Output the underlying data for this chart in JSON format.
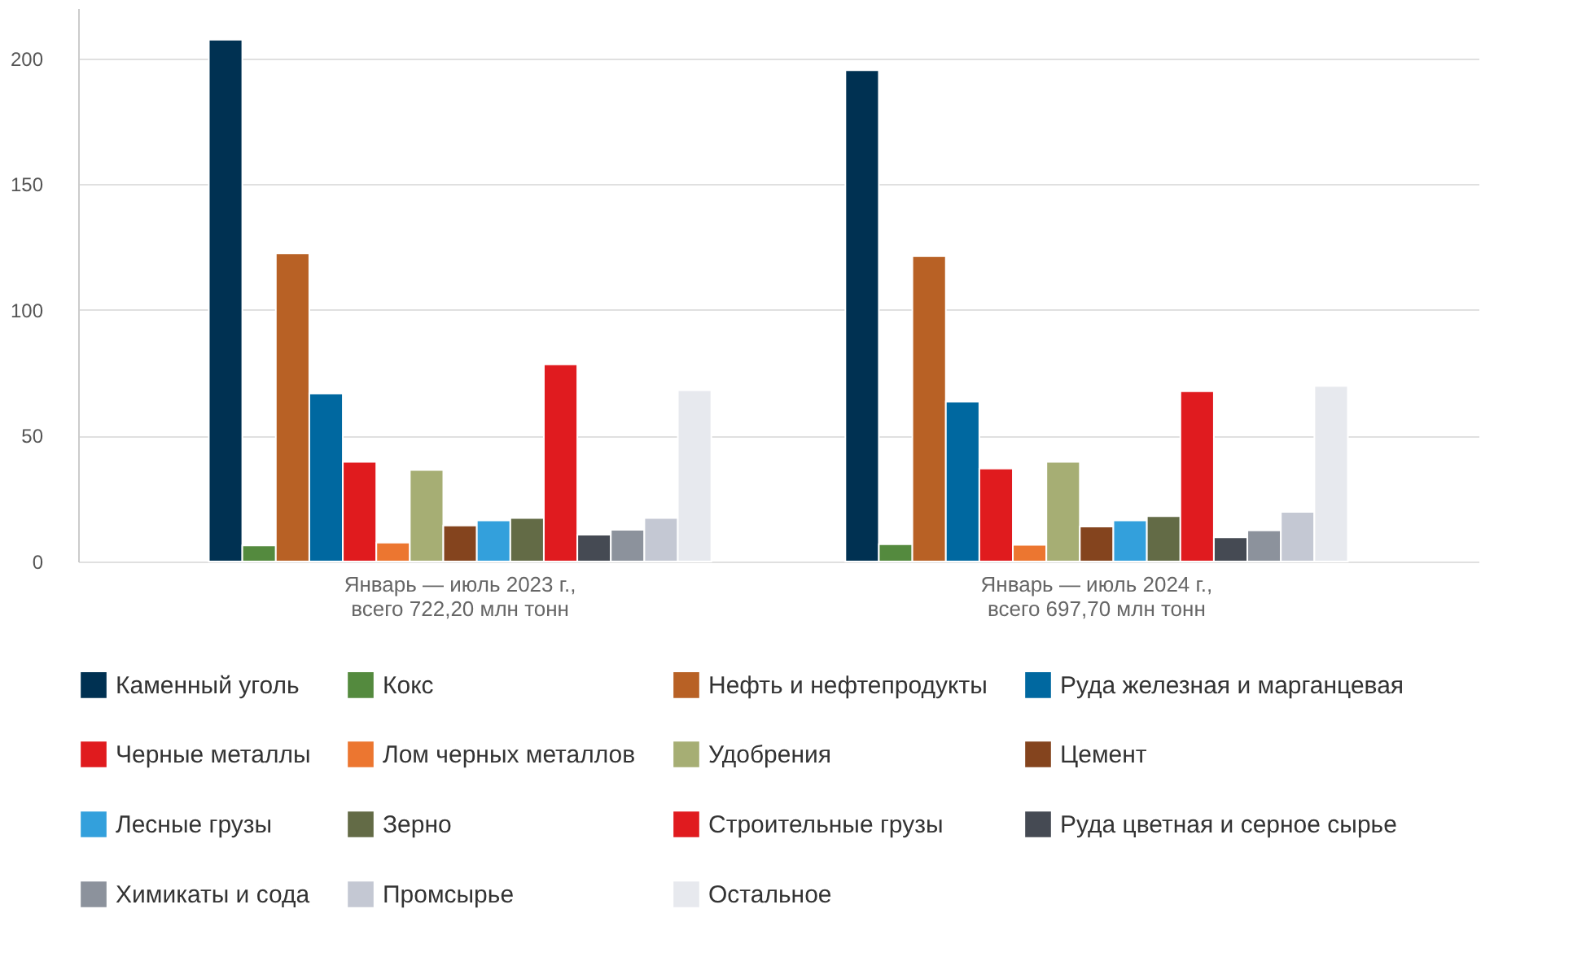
{
  "chart_data": {
    "type": "bar",
    "categories": [
      "Январь — июль 2023 г.,\nвсего 722,20 млн тонн",
      "Январь — июль 2024 г.,\nвсего 697,70 млн тонн"
    ],
    "series": [
      {
        "name": "Каменный уголь",
        "color": "#003152",
        "values": [
          207.5,
          195.3
        ]
      },
      {
        "name": "Кокс",
        "color": "#548a3e",
        "values": [
          6.4,
          6.9
        ]
      },
      {
        "name": "Нефть и нефтепродукты",
        "color": "#b86125",
        "values": [
          122.5,
          121.4
        ]
      },
      {
        "name": "Руда железная и марганцевая",
        "color": "#0068a0",
        "values": [
          66.8,
          63.6
        ]
      },
      {
        "name": "Черные металлы",
        "color": "#e01b1e",
        "values": [
          39.6,
          37.0
        ]
      },
      {
        "name": "Лом черных металлов",
        "color": "#ec7630",
        "values": [
          7.5,
          6.6
        ]
      },
      {
        "name": "Удобрения",
        "color": "#a6ae74",
        "values": [
          36.4,
          39.6
        ]
      },
      {
        "name": "Цемент",
        "color": "#84441e",
        "values": [
          14.3,
          13.9
        ]
      },
      {
        "name": "Лесные грузы",
        "color": "#33a0dc",
        "values": [
          16.3,
          16.3
        ]
      },
      {
        "name": "Зерно",
        "color": "#636b46",
        "values": [
          17.3,
          18.0
        ]
      },
      {
        "name": "Строительные грузы",
        "color": "#e01b1f",
        "values": [
          78.4,
          67.7
        ]
      },
      {
        "name": "Руда цветная и серное сырье",
        "color": "#454a53",
        "values": [
          10.7,
          9.6
        ]
      },
      {
        "name": "Химикаты и сода",
        "color": "#8c929c",
        "values": [
          12.6,
          12.4
        ]
      },
      {
        "name": "Промсырье",
        "color": "#c4c8d3",
        "values": [
          17.3,
          19.7
        ]
      },
      {
        "name": "Остальное",
        "color": "#e7e9ee",
        "values": [
          68.1,
          69.8
        ]
      }
    ],
    "ylim": [
      0,
      220
    ],
    "yticks": [
      0,
      50,
      100,
      150,
      200
    ],
    "grid": "y",
    "legend": "bottom"
  }
}
